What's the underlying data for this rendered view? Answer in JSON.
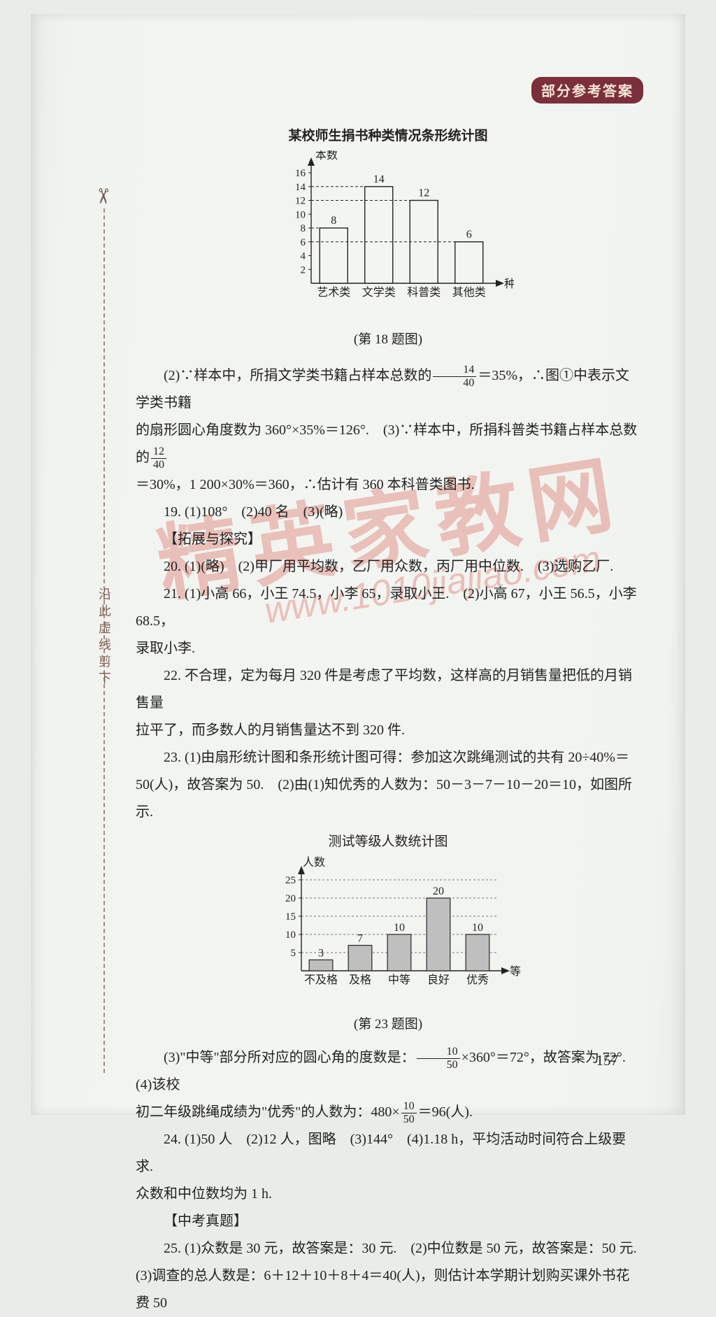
{
  "header_badge": "部分参考答案",
  "cut_label": "沿此虚线剪下",
  "page_num": "157",
  "watermark_big": "精英家教网",
  "watermark_url": "www.1010jiajiao.com",
  "chart1": {
    "type": "bar",
    "title": "某校师生捐书种类情况条形统计图",
    "caption": "(第 18 题图)",
    "y_label": "本数",
    "x_label": "种类",
    "categories": [
      "艺术类",
      "文学类",
      "科普类",
      "其他类"
    ],
    "values": [
      8,
      14,
      12,
      6
    ],
    "y_ticks": [
      2,
      4,
      6,
      8,
      10,
      12,
      14,
      16
    ],
    "y_min": 0,
    "y_max": 16,
    "bar_color": "#f3f5f1",
    "bar_border": "#232323",
    "axis_color": "#232323",
    "dash_color": "#232323",
    "label_fontsize": 16,
    "tick_fontsize": 15,
    "value_fontsize": 16
  },
  "chart2": {
    "type": "bar",
    "title": "测试等级人数统计图",
    "caption": "(第 23 题图)",
    "y_label": "人数",
    "x_label": "等级",
    "categories": [
      "不及格",
      "及格",
      "中等",
      "良好",
      "优秀"
    ],
    "values": [
      3,
      7,
      10,
      20,
      10
    ],
    "y_ticks": [
      5,
      10,
      15,
      20,
      25
    ],
    "y_min": 0,
    "y_max": 25,
    "bar_fill": "#bfbfbf",
    "bar_border": "#323232",
    "axis_color": "#232323",
    "grid_color": "#5a5a5a",
    "label_fontsize": 16,
    "tick_fontsize": 15,
    "value_fontsize": 16
  },
  "body": {
    "p1_a": "(2)∵样本中，所捐文学类书籍占样本总数的",
    "p1_frac_n": "14",
    "p1_frac_d": "40",
    "p1_b": "＝35%，∴图①中表示文学类书籍",
    "p2_a": "的扇形圆心角度数为 360°×35%＝126°.　(3)∵样本中，所捐科普类书籍占样本总数的",
    "p2_frac_n": "12",
    "p2_frac_d": "40",
    "p3": "＝30%，1 200×30%＝360，∴估计有 360 本科普类图书.",
    "p4": "19. (1)108°　(2)40 名　(3)(略)",
    "p5": "【拓展与探究】",
    "p6": "20. (1)(略)　(2)甲厂用平均数，乙厂用众数，丙厂用中位数.　(3)选购乙厂.",
    "p7": "21. (1)小高 66，小王 74.5，小李 65，录取小王.　(2)小高 67，小王 56.5，小李 68.5，",
    "p7b": "录取小李.",
    "p8": "22. 不合理，定为每月 320 件是考虑了平均数，这样高的月销售量把低的月销售量",
    "p8b": "拉平了，而多数人的月销售量达不到 320 件.",
    "p9": "23. (1)由扇形统计图和条形统计图可得：参加这次跳绳测试的共有 20÷40%＝",
    "p9b": "50(人)，故答案为 50.　(2)由(1)知优秀的人数为：50－3－7－10－20＝10，如图所示.",
    "p10_a": "(3)\"中等\"部分所对应的圆心角的度数是：",
    "p10_frac_n": "10",
    "p10_frac_d": "50",
    "p10_b": "×360°＝72°，故答案为 72°.　(4)该校",
    "p11_a": "初二年级跳绳成绩为\"优秀\"的人数为：480×",
    "p11_frac_n": "10",
    "p11_frac_d": "50",
    "p11_b": "＝96(人).",
    "p12": "24. (1)50 人　(2)12 人，图略　(3)144°　(4)1.18 h，平均活动时间符合上级要求.",
    "p12b": "众数和中位数均为 1 h.",
    "p13": "【中考真题】",
    "p14": "25. (1)众数是 30 元，故答案是：30 元.　(2)中位数是 50 元，故答案是：50 元.",
    "p15": "(3)调查的总人数是：6＋12＋10＋8＋4＝40(人)，则估计本学期计划购买课外书花费 50"
  }
}
